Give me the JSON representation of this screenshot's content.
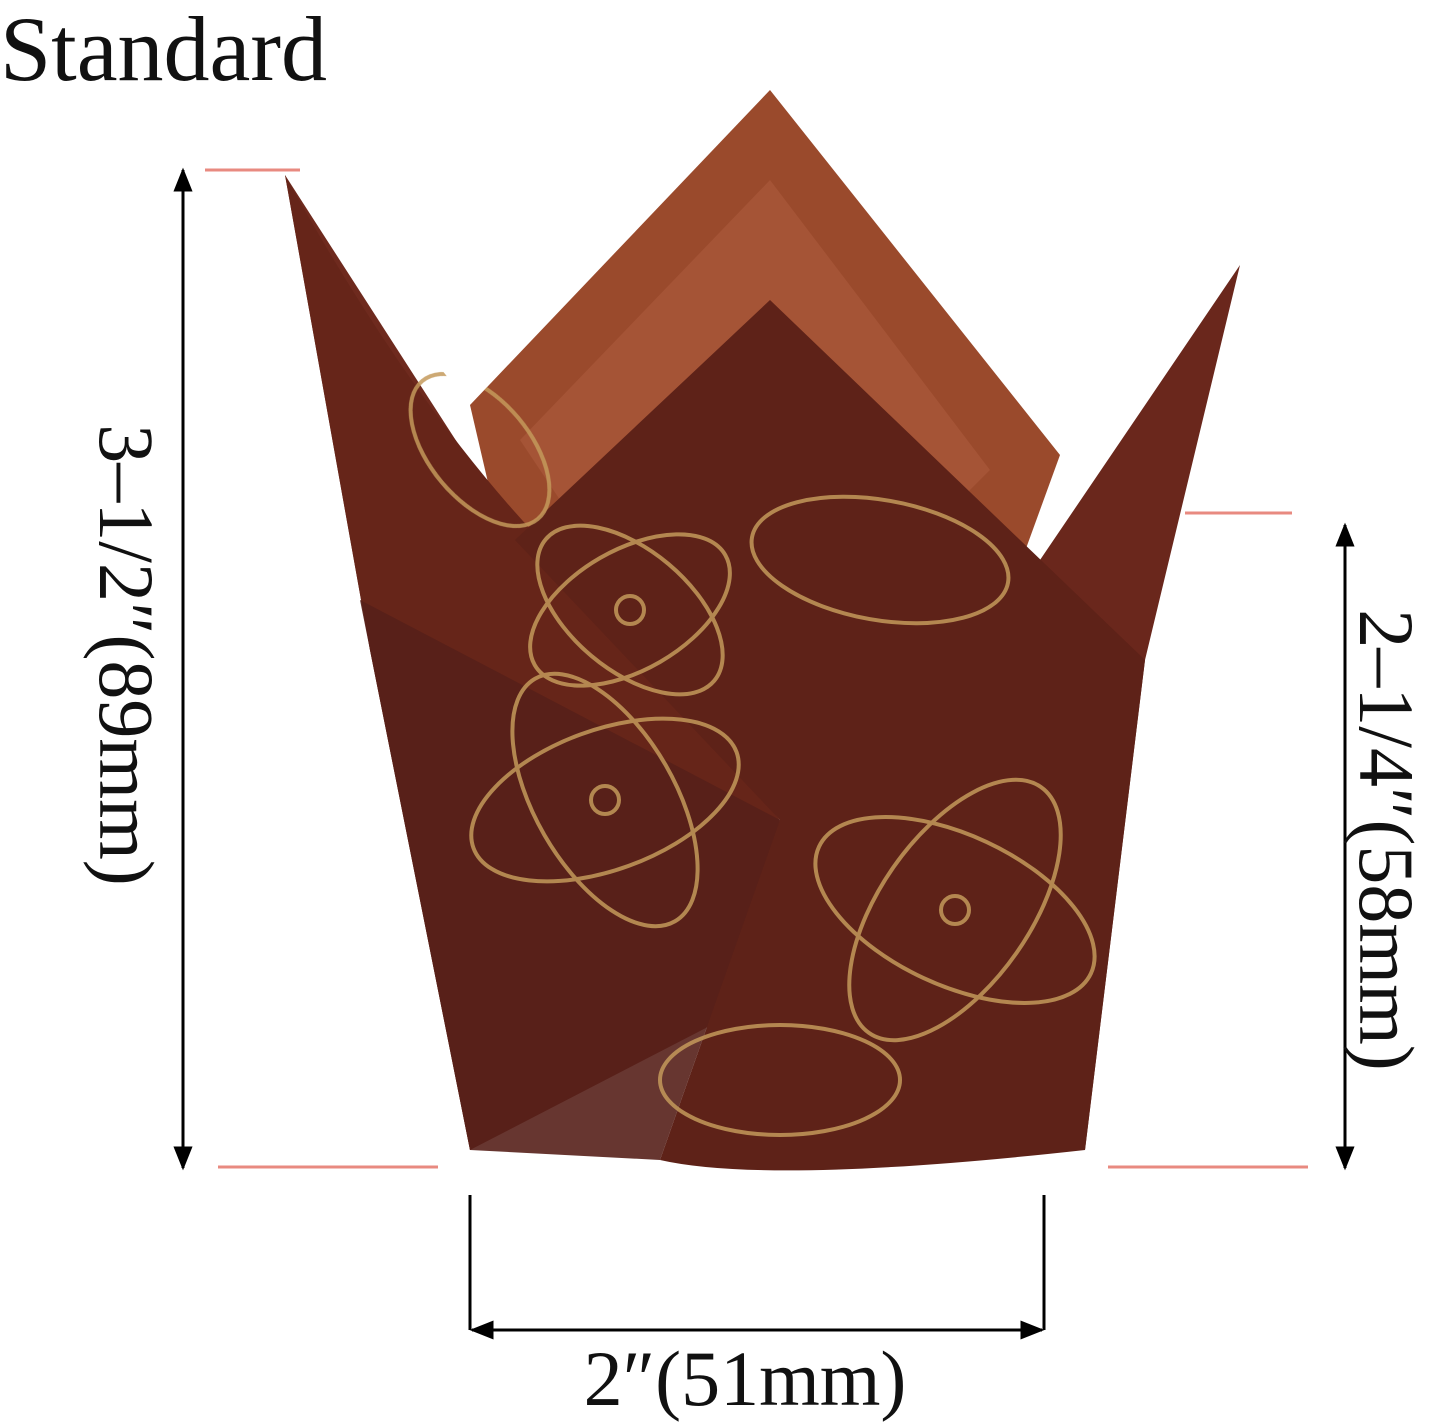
{
  "title": "Standard",
  "dimensions": {
    "height": "3–1/2″(89mm)",
    "upper_height": "2–1/4″(58mm)",
    "base_width": "2″(51mm)"
  }
}
